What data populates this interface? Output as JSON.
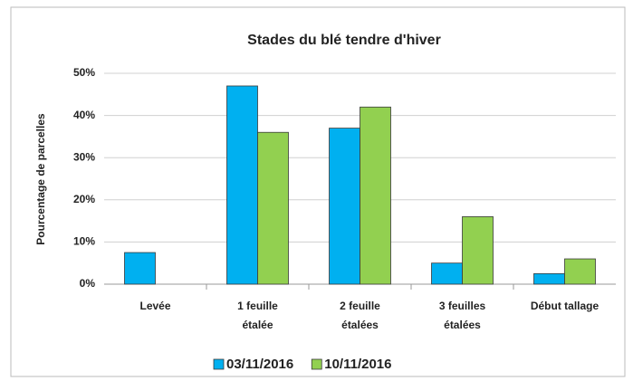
{
  "chart_data": {
    "type": "bar",
    "title": "Stades du blé tendre d'hiver",
    "y_label": "Pourcentage de parcelles",
    "categories": [
      "Levée",
      "1 feuille\nétalée",
      "2 feuille\nétalées",
      "3 feuilles\nétalées",
      "Début tallage"
    ],
    "series": [
      {
        "name": "03/11/2016",
        "color": "#00b0f0",
        "values": [
          7.5,
          47,
          37,
          5,
          2.5
        ]
      },
      {
        "name": "10/11/2016",
        "color": "#92d050",
        "values": [
          0,
          36,
          42,
          16,
          6
        ]
      }
    ],
    "ylim": [
      0,
      50
    ],
    "yticks": [
      {
        "value": 0,
        "label": "0%"
      },
      {
        "value": 10,
        "label": "10%"
      },
      {
        "value": 20,
        "label": "20%"
      },
      {
        "value": 30,
        "label": "30%"
      },
      {
        "value": 40,
        "label": "40%"
      },
      {
        "value": 50,
        "label": "50%"
      }
    ],
    "grid": true
  }
}
